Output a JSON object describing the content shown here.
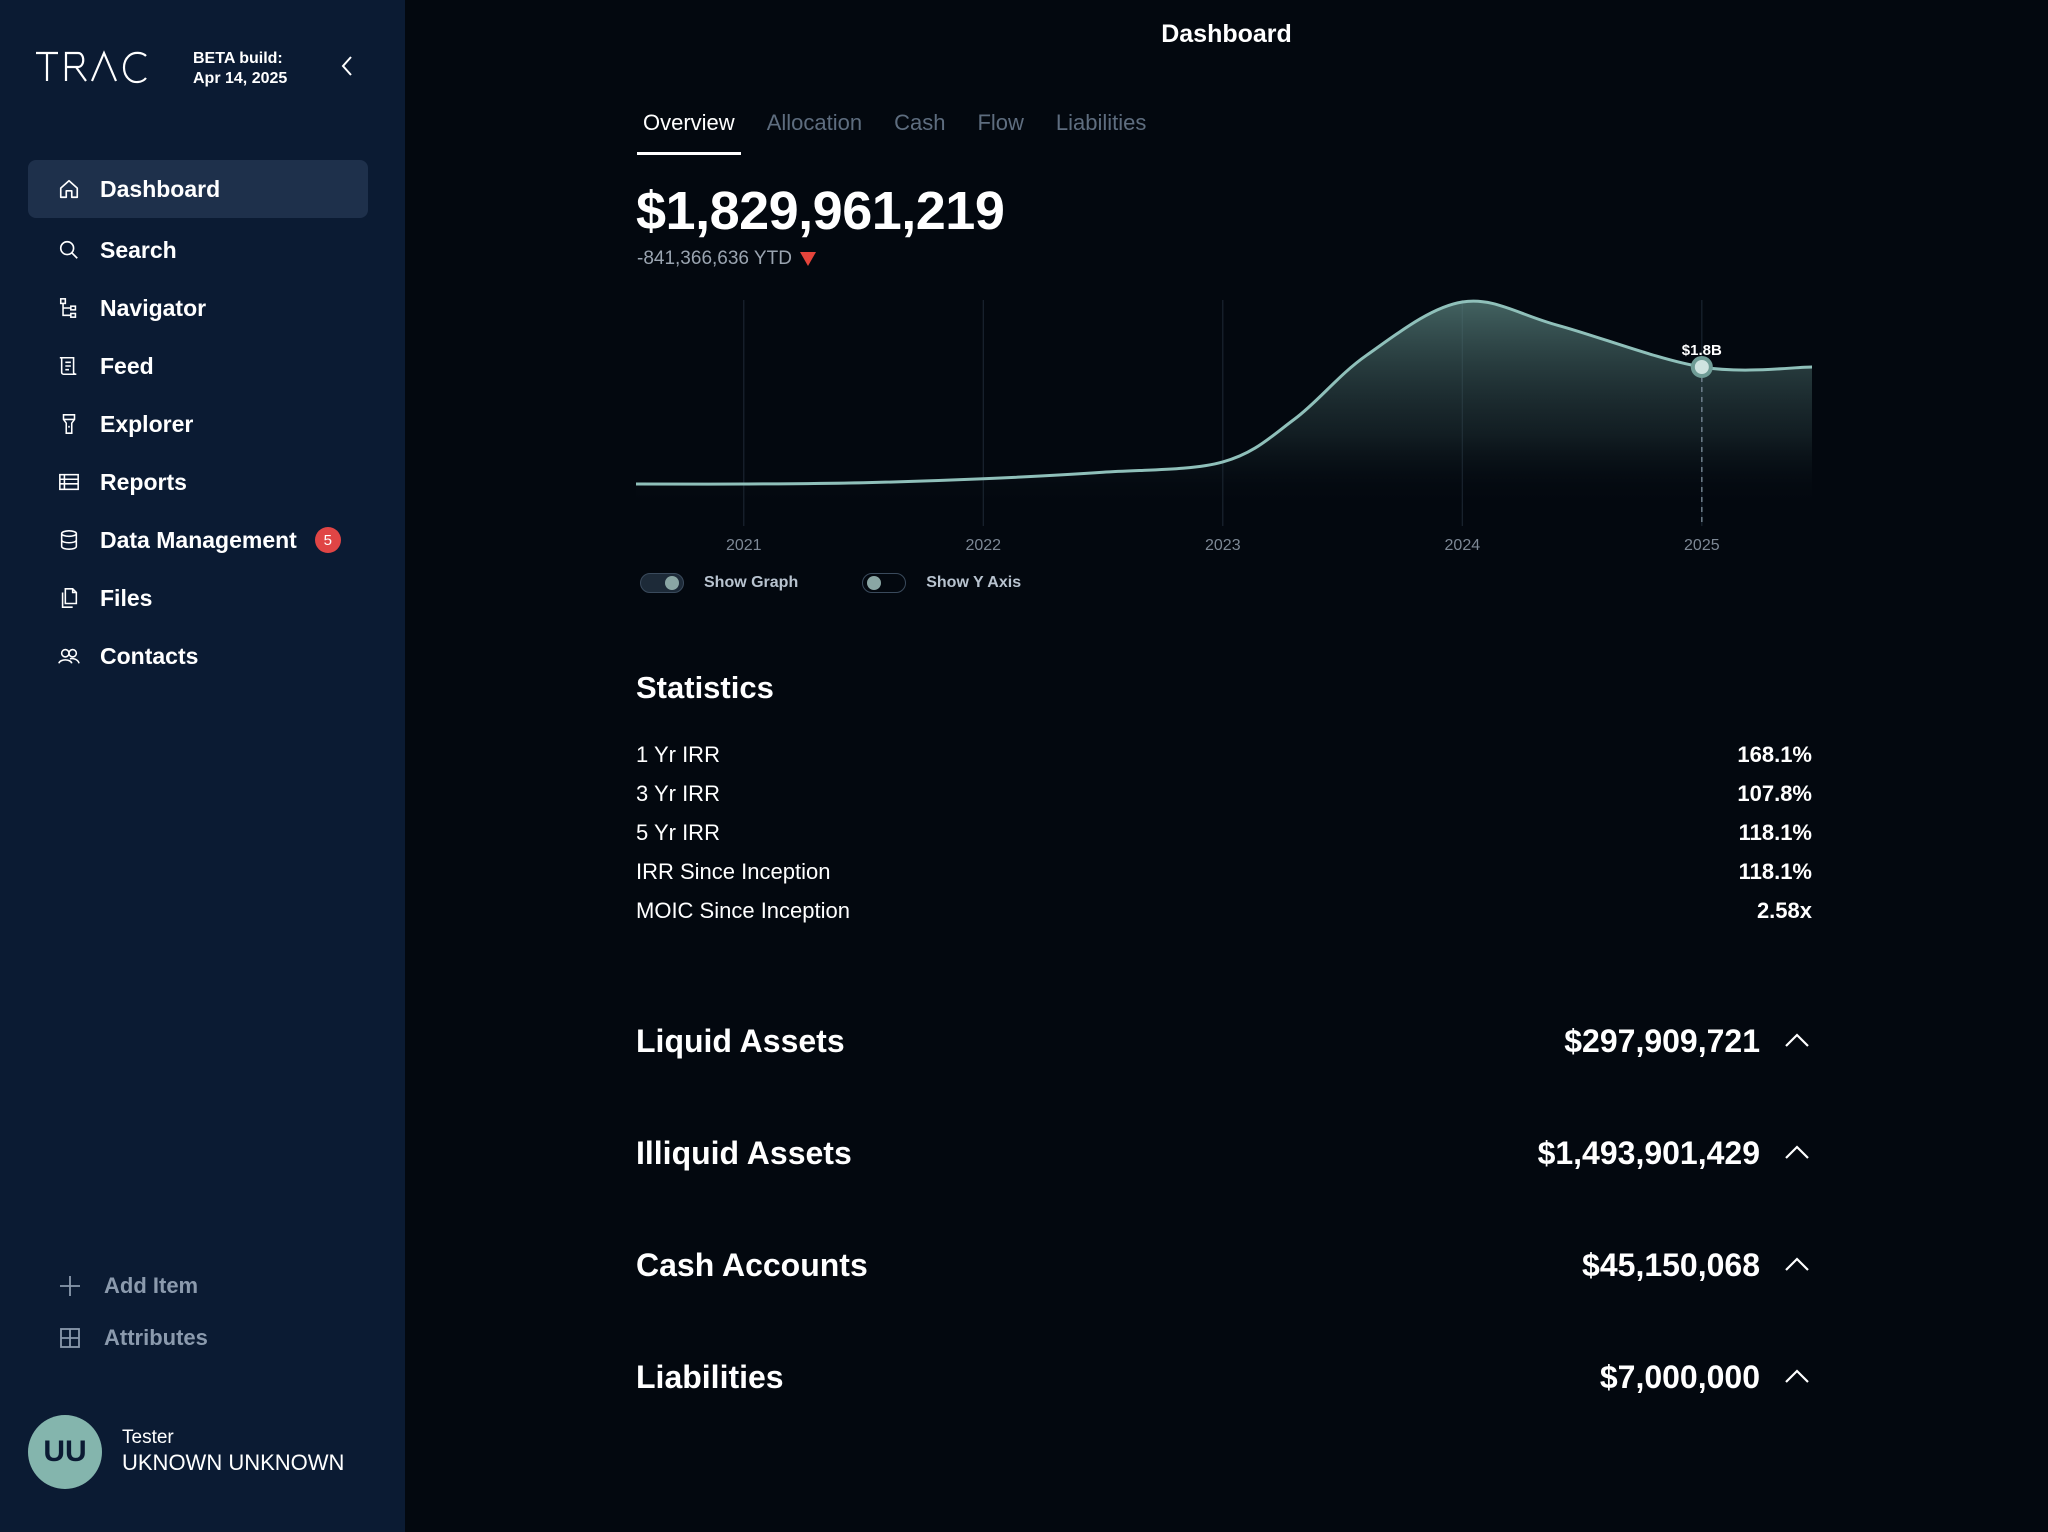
{
  "sidebar": {
    "logo": "TRAC",
    "beta_line1": "BETA build:",
    "beta_line2": "Apr 14, 2025",
    "nav": [
      {
        "label": "Dashboard",
        "icon": "home-icon"
      },
      {
        "label": "Search",
        "icon": "search-icon"
      },
      {
        "label": "Navigator",
        "icon": "tree-icon"
      },
      {
        "label": "Feed",
        "icon": "feed-icon"
      },
      {
        "label": "Explorer",
        "icon": "flashlight-icon"
      },
      {
        "label": "Reports",
        "icon": "table-icon"
      },
      {
        "label": "Data Management",
        "icon": "database-icon",
        "badge": "5"
      },
      {
        "label": "Files",
        "icon": "files-icon"
      },
      {
        "label": "Contacts",
        "icon": "contacts-icon"
      }
    ],
    "add_item": "Add Item",
    "attributes": "Attributes",
    "user": {
      "initials": "UU",
      "role": "Tester",
      "name": "UKNOWN UNKNOWN"
    }
  },
  "header": {
    "title": "Dashboard"
  },
  "tabs": [
    "Overview",
    "Allocation",
    "Cash",
    "Flow",
    "Liabilities"
  ],
  "summary": {
    "total": "$1,829,961,219",
    "ytd": "-841,366,636 YTD"
  },
  "toggles": {
    "show_graph": "Show Graph",
    "show_y_axis": "Show Y Axis"
  },
  "chart_data": {
    "type": "area",
    "x": [
      2020.55,
      2021,
      2021.5,
      2022,
      2022.5,
      2023,
      2023.3,
      2023.6,
      2024,
      2024.4,
      2025,
      2025.46
    ],
    "values": [
      0.9,
      0.9,
      0.91,
      0.94,
      0.99,
      1.07,
      1.4,
      1.89,
      2.3,
      2.12,
      1.8,
      1.8
    ],
    "xticks": [
      "2021",
      "2022",
      "2023",
      "2024",
      "2025"
    ],
    "annotation": {
      "x": 2025,
      "label": "$1.8B"
    },
    "line_color": "#8fc0ba",
    "fill_color": "#58807c"
  },
  "statistics": {
    "title": "Statistics",
    "rows": [
      {
        "label": "1 Yr IRR",
        "value": "168.1%"
      },
      {
        "label": "3 Yr IRR",
        "value": "107.8%"
      },
      {
        "label": "5 Yr IRR",
        "value": "118.1%"
      },
      {
        "label": "IRR Since Inception",
        "value": "118.1%"
      },
      {
        "label": "MOIC Since Inception",
        "value": "2.58x"
      }
    ]
  },
  "groups": [
    {
      "label": "Liquid Assets",
      "value": "$297,909,721"
    },
    {
      "label": "Illiquid Assets",
      "value": "$1,493,901,429"
    },
    {
      "label": "Cash Accounts",
      "value": "$45,150,068"
    },
    {
      "label": "Liabilities",
      "value": "$7,000,000"
    }
  ]
}
